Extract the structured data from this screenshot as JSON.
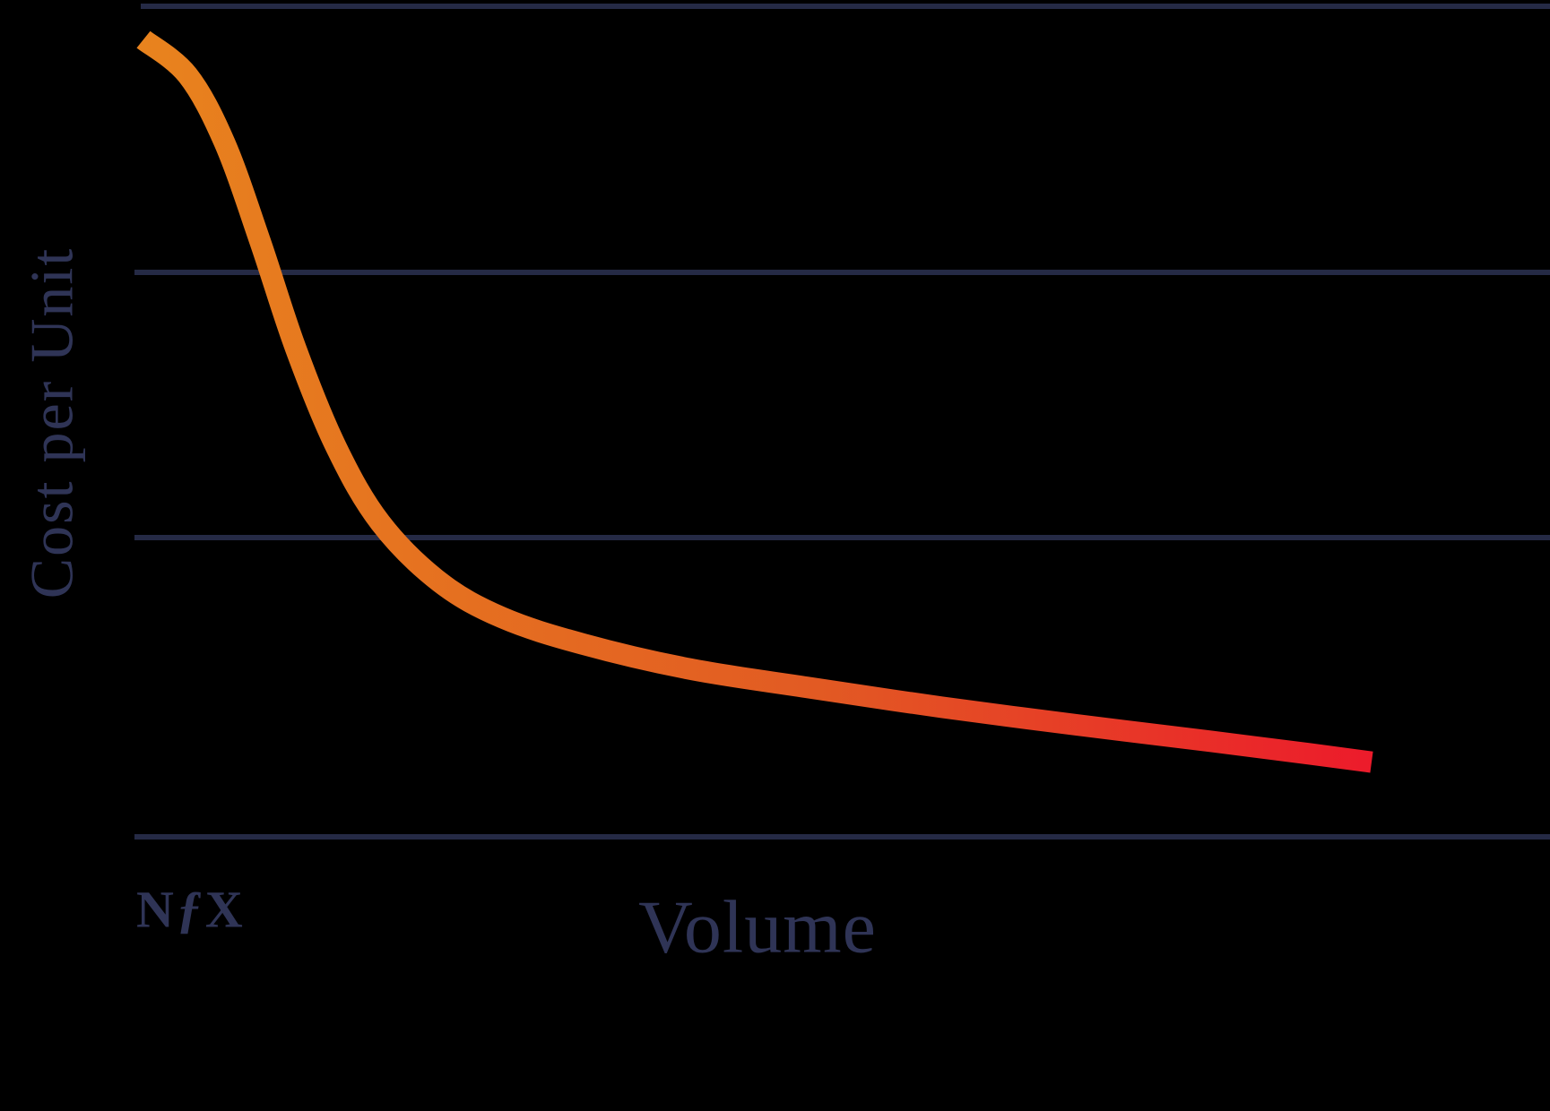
{
  "colors": {
    "background": "#000000",
    "grid": "#252a45",
    "label_text": "#2f3456",
    "curve_gradient": [
      "#E8831E",
      "#E25A23",
      "#EC1B2B"
    ]
  },
  "logo": {
    "n": "N",
    "f": "ƒ",
    "x": "X"
  },
  "chart_data": {
    "type": "line",
    "title": "",
    "xlabel": "Volume",
    "ylabel": "Cost per Unit",
    "xlim": [
      0,
      100
    ],
    "ylim": [
      0,
      100
    ],
    "grid": "horizontal",
    "gridline_values": [
      100,
      68,
      36,
      0
    ],
    "axis_ticks": "none",
    "description": "Declining cost-per-unit curve vs volume (economies of scale), orange-to-red gradient line, NfX branding",
    "x": [
      0,
      3.6,
      6.6,
      9.5,
      12.4,
      15.7,
      19.3,
      24.1,
      29.2,
      35.8,
      44.5,
      54.0,
      65.0,
      75.9,
      86.9,
      94.9,
      100
    ],
    "y": [
      96.0,
      91.7,
      83.6,
      71.7,
      58.8,
      46.9,
      37.8,
      30.7,
      26.4,
      23.2,
      20.2,
      18.0,
      15.6,
      13.5,
      11.5,
      10.0,
      9.0
    ]
  }
}
